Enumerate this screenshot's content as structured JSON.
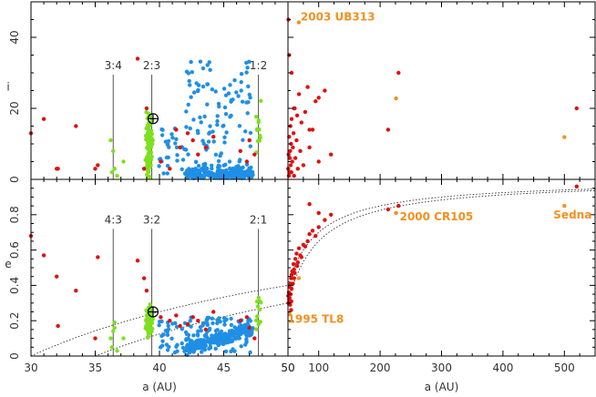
{
  "chart_data": [
    {
      "panel": "top-left",
      "type": "scatter",
      "xlabel": "",
      "ylabel": "i",
      "xlim": [
        30,
        50
      ],
      "ylim": [
        0,
        50
      ],
      "xticks": [],
      "yticks": [
        0,
        20,
        40
      ],
      "resonances": [
        {
          "label": "3:4",
          "a": 36.4,
          "top": 29.5
        },
        {
          "label": "2:3",
          "a": 39.4,
          "top": 29.5
        },
        {
          "label": "1:2",
          "a": 47.7,
          "top": 29.5
        }
      ],
      "pluto": {
        "a": 39.5,
        "value": 17.1
      },
      "colors": {
        "classical": "#1f8fe6",
        "resonant": "#7ee01e",
        "scattered": "#e01010",
        "named": "#f39020"
      }
    },
    {
      "panel": "top-right",
      "type": "scatter",
      "xlabel": "",
      "ylabel": "",
      "xlim": [
        50,
        550
      ],
      "ylim": [
        0,
        50
      ],
      "labels": [
        {
          "text": "2003 UB313",
          "a": 67.7,
          "value": 44.2
        }
      ],
      "named_points": [
        {
          "a": 67.7,
          "value": 44.2
        },
        {
          "a": 226,
          "value": 22.8
        },
        {
          "a": 500,
          "value": 11.9
        }
      ]
    },
    {
      "panel": "bottom-left",
      "type": "scatter",
      "xlabel": "a (AU)",
      "ylabel": "e",
      "xlim": [
        30,
        50
      ],
      "ylim": [
        0,
        1
      ],
      "xticks": [
        30,
        35,
        40,
        45,
        50
      ],
      "yticks": [
        0,
        0.2,
        0.4,
        0.6,
        0.8
      ],
      "resonances": [
        {
          "label": "4:3",
          "a": 36.4,
          "top": 0.72
        },
        {
          "label": "3:2",
          "a": 39.4,
          "top": 0.72
        },
        {
          "label": "2:1",
          "a": 47.7,
          "top": 0.72
        }
      ],
      "pluto": {
        "a": 39.5,
        "value": 0.25
      },
      "perihelion_curves": [
        30,
        35
      ]
    },
    {
      "panel": "bottom-right",
      "type": "scatter",
      "xlabel": "a (AU)",
      "ylabel": "",
      "xlim": [
        50,
        550
      ],
      "ylim": [
        0,
        1
      ],
      "xticks": [
        50,
        100,
        200,
        300,
        400,
        500
      ],
      "labels": [
        {
          "text": "2000 CR105",
          "a": 226,
          "value": 0.81
        },
        {
          "text": "Sedna",
          "a": 500,
          "value": 0.85
        },
        {
          "text": "1995 TL8",
          "a": 52.3,
          "value": 0.24
        }
      ]
    }
  ]
}
